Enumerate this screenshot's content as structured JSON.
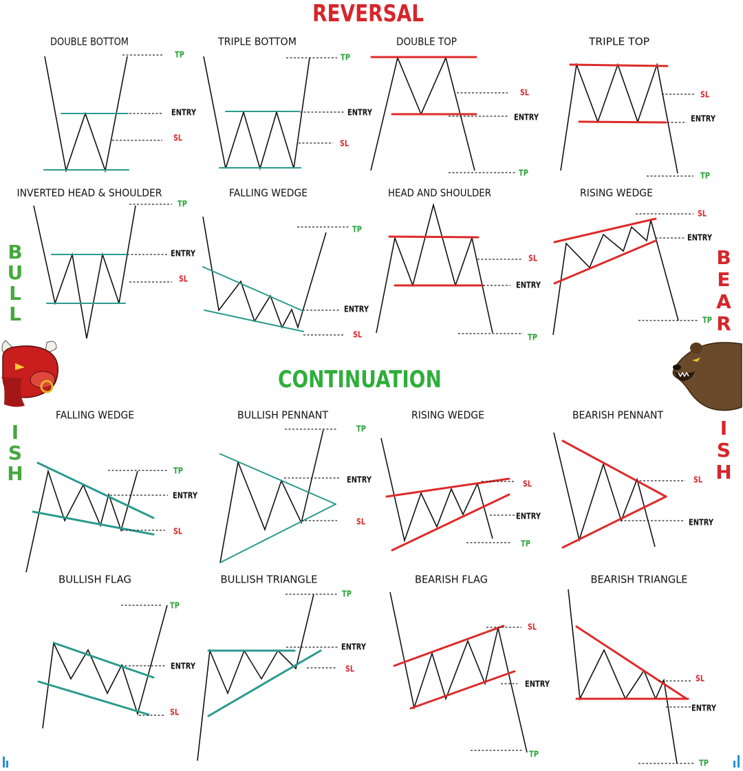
{
  "titles": {
    "reversal": "REVERSAL",
    "continuation": "CONTINUATION"
  },
  "side_labels": {
    "left_top": [
      "B",
      "U",
      "L",
      "L"
    ],
    "left_bottom": [
      "I",
      "S",
      "H"
    ],
    "right_top": [
      "B",
      "E",
      "A",
      "R"
    ],
    "right_bottom": [
      "I",
      "S",
      "H"
    ]
  },
  "colors": {
    "reversal_title": "#d6262b",
    "continuation_title": "#2fae3a",
    "bull_letters": "#45a83d",
    "bear_letters": "#d6262b",
    "teal_line": "#2a9a8c",
    "red_line": "#dd2a2a",
    "tp_label": "#2aa43a",
    "sl_label": "#d6262b",
    "entry_label": "#111111",
    "price_path": "#111111"
  },
  "mascots": {
    "left": "bull-head-icon",
    "right": "bear-head-icon"
  },
  "level_labels": {
    "tp": "TP",
    "sl": "SL",
    "entry": "ENTRY"
  },
  "patterns": [
    {
      "id": "double-bottom",
      "title": "DOUBLE BOTTOM",
      "labels": [
        "TP",
        "ENTRY",
        "SL"
      ]
    },
    {
      "id": "triple-bottom",
      "title": "TRIPLE BOTTOM",
      "labels": [
        "TP",
        "ENTRY",
        "SL"
      ]
    },
    {
      "id": "double-top",
      "title": "DOUBLE TOP",
      "labels": [
        "SL",
        "ENTRY",
        "TP"
      ]
    },
    {
      "id": "triple-top",
      "title": "TRIPLE TOP",
      "labels": [
        "SL",
        "ENTRY",
        "TP"
      ]
    },
    {
      "id": "inverted-head-shoulder",
      "title": "INVERTED HEAD & SHOULDER",
      "labels": [
        "TP",
        "ENTRY",
        "SL"
      ]
    },
    {
      "id": "falling-wedge-reversal",
      "title": "FALLING WEDGE",
      "labels": [
        "TP",
        "ENTRY",
        "SL"
      ]
    },
    {
      "id": "head-and-shoulder",
      "title": "HEAD AND SHOULDER",
      "labels": [
        "SL",
        "ENTRY",
        "TP"
      ]
    },
    {
      "id": "rising-wedge-reversal",
      "title": "RISING WEDGE",
      "labels": [
        "SL",
        "ENTRY",
        "TP"
      ]
    },
    {
      "id": "falling-wedge-continuation",
      "title": "FALLING WEDGE",
      "labels": [
        "TP",
        "ENTRY",
        "SL"
      ]
    },
    {
      "id": "bullish-pennant",
      "title": "BULLISH PENNANT",
      "labels": [
        "TP",
        "ENTRY",
        "SL"
      ]
    },
    {
      "id": "rising-wedge-continuation",
      "title": "RISING WEDGE",
      "labels": [
        "SL",
        "ENTRY",
        "TP"
      ]
    },
    {
      "id": "bearish-pennant",
      "title": "BEARISH PENNANT",
      "labels": [
        "SL",
        "ENTRY"
      ]
    },
    {
      "id": "bullish-flag",
      "title": "BULLISH FLAG",
      "labels": [
        "TP",
        "ENTRY",
        "SL"
      ]
    },
    {
      "id": "bullish-triangle",
      "title": "BULLISH TRIANGLE",
      "labels": [
        "TP",
        "ENTRY",
        "SL"
      ]
    },
    {
      "id": "bearish-flag",
      "title": "BEARISH FLAG",
      "labels": [
        "SL",
        "ENTRY",
        "TP"
      ]
    },
    {
      "id": "bearish-triangle",
      "title": "BEARISH TRIANGLE",
      "labels": [
        "SL",
        "ENTRY",
        "TP"
      ]
    }
  ]
}
